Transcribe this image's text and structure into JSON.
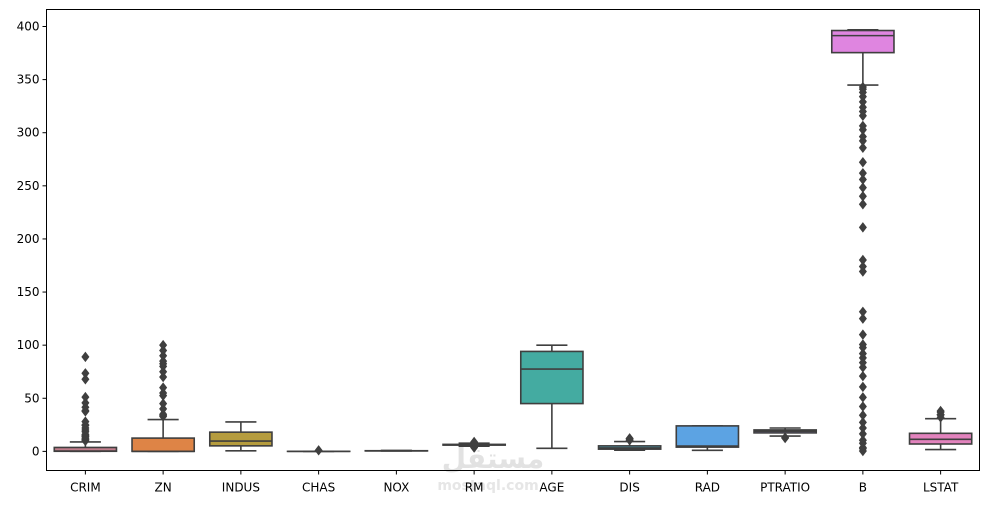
{
  "watermark": {
    "logo": "مستقل",
    "site": "mostaql.com"
  },
  "chart_data": {
    "type": "box",
    "title": "",
    "xlabel": "",
    "ylabel": "",
    "ylim": [
      -18,
      416
    ],
    "yticks": [
      0,
      50,
      100,
      150,
      200,
      250,
      300,
      350,
      400
    ],
    "grid": false,
    "categories": [
      "CRIM",
      "ZN",
      "INDUS",
      "CHAS",
      "NOX",
      "RM",
      "AGE",
      "DIS",
      "RAD",
      "PTRATIO",
      "B",
      "LSTAT"
    ],
    "boxes": [
      {
        "name": "CRIM",
        "color": "#c17d8b",
        "whislo": 0.0,
        "q1": 0.1,
        "med": 0.3,
        "q3": 3.7,
        "whishi": 8.9,
        "fliers": [
          9.9,
          10.8,
          11.1,
          12.0,
          13.5,
          14.3,
          15.0,
          16.0,
          18.5,
          20.1,
          22.0,
          24.4,
          25.0,
          28.0,
          37.7,
          38.4,
          41.5,
          45.7,
          51.1,
          67.9,
          73.5,
          89.0
        ]
      },
      {
        "name": "ZN",
        "color": "#de8446",
        "whislo": 0.0,
        "q1": 0.0,
        "med": 0.0,
        "q3": 12.5,
        "whishi": 30.0,
        "fliers": [
          33,
          34,
          35,
          40,
          45,
          52.5,
          55,
          60,
          70,
          75,
          80,
          82.5,
          85,
          90,
          95,
          100
        ]
      },
      {
        "name": "INDUS",
        "color": "#b59c3e",
        "whislo": 0.5,
        "q1": 5.2,
        "med": 9.7,
        "q3": 18.1,
        "whishi": 27.7,
        "fliers": []
      },
      {
        "name": "CHAS",
        "color": "#7f9f3f",
        "whislo": 0.0,
        "q1": 0.0,
        "med": 0.0,
        "q3": 0.0,
        "whishi": 0.0,
        "fliers": [
          1.0
        ]
      },
      {
        "name": "NOX",
        "color": "#49a865",
        "whislo": 0.39,
        "q1": 0.45,
        "med": 0.54,
        "q3": 0.62,
        "whishi": 0.87,
        "fliers": []
      },
      {
        "name": "RM",
        "color": "#4aa888",
        "whislo": 4.9,
        "q1": 5.9,
        "med": 6.2,
        "q3": 6.6,
        "whishi": 7.7,
        "fliers": [
          3.6,
          4.1,
          4.4,
          8.0,
          8.4,
          8.8
        ]
      },
      {
        "name": "AGE",
        "color": "#44aba1",
        "whislo": 2.9,
        "q1": 45.0,
        "med": 77.5,
        "q3": 94.1,
        "whishi": 100.0,
        "fliers": []
      },
      {
        "name": "DIS",
        "color": "#48a6bd",
        "whislo": 1.1,
        "q1": 2.1,
        "med": 3.2,
        "q3": 5.2,
        "whishi": 9.2,
        "fliers": [
          10.6,
          10.7,
          12.1,
          12.1
        ]
      },
      {
        "name": "RAD",
        "color": "#5ca3e3",
        "whislo": 1.0,
        "q1": 4.0,
        "med": 5.0,
        "q3": 24.0,
        "whishi": 24.0,
        "fliers": []
      },
      {
        "name": "PTRATIO",
        "color": "#a08ee3",
        "whislo": 14.4,
        "q1": 17.4,
        "med": 19.05,
        "q3": 20.2,
        "whishi": 22.0,
        "fliers": [
          12.6,
          13.0
        ]
      },
      {
        "name": "B",
        "color": "#df85e0",
        "whislo": 344.9,
        "q1": 375.4,
        "med": 391.4,
        "q3": 396.2,
        "whishi": 396.9,
        "fliers": [
          0.3,
          2.6,
          3.5,
          7.7,
          10.5,
          16.5,
          22.0,
          27.3,
          34.0,
          42.3,
          50.9,
          60.7,
          70.8,
          79.1,
          83.5,
          88.0,
          92.0,
          97.7,
          100.6,
          109.9,
          125.0,
          131.4,
          169.3,
          174.0,
          180.2,
          210.9,
          232.6,
          240.2,
          248.3,
          256.0,
          261.9,
          272.2,
          285.8,
          292.3,
          296.3,
          302.8,
          306.4,
          316.0,
          320.0,
          324.0,
          329.0,
          334.0,
          338.0,
          341.0,
          343.0
        ]
      },
      {
        "name": "LSTAT",
        "color": "#e283bd",
        "whislo": 1.7,
        "q1": 6.95,
        "med": 11.4,
        "q3": 17.0,
        "whishi": 30.8,
        "fliers": [
          31.99,
          34.37,
          34.41,
          34.77,
          36.98,
          37.97
        ]
      }
    ]
  }
}
